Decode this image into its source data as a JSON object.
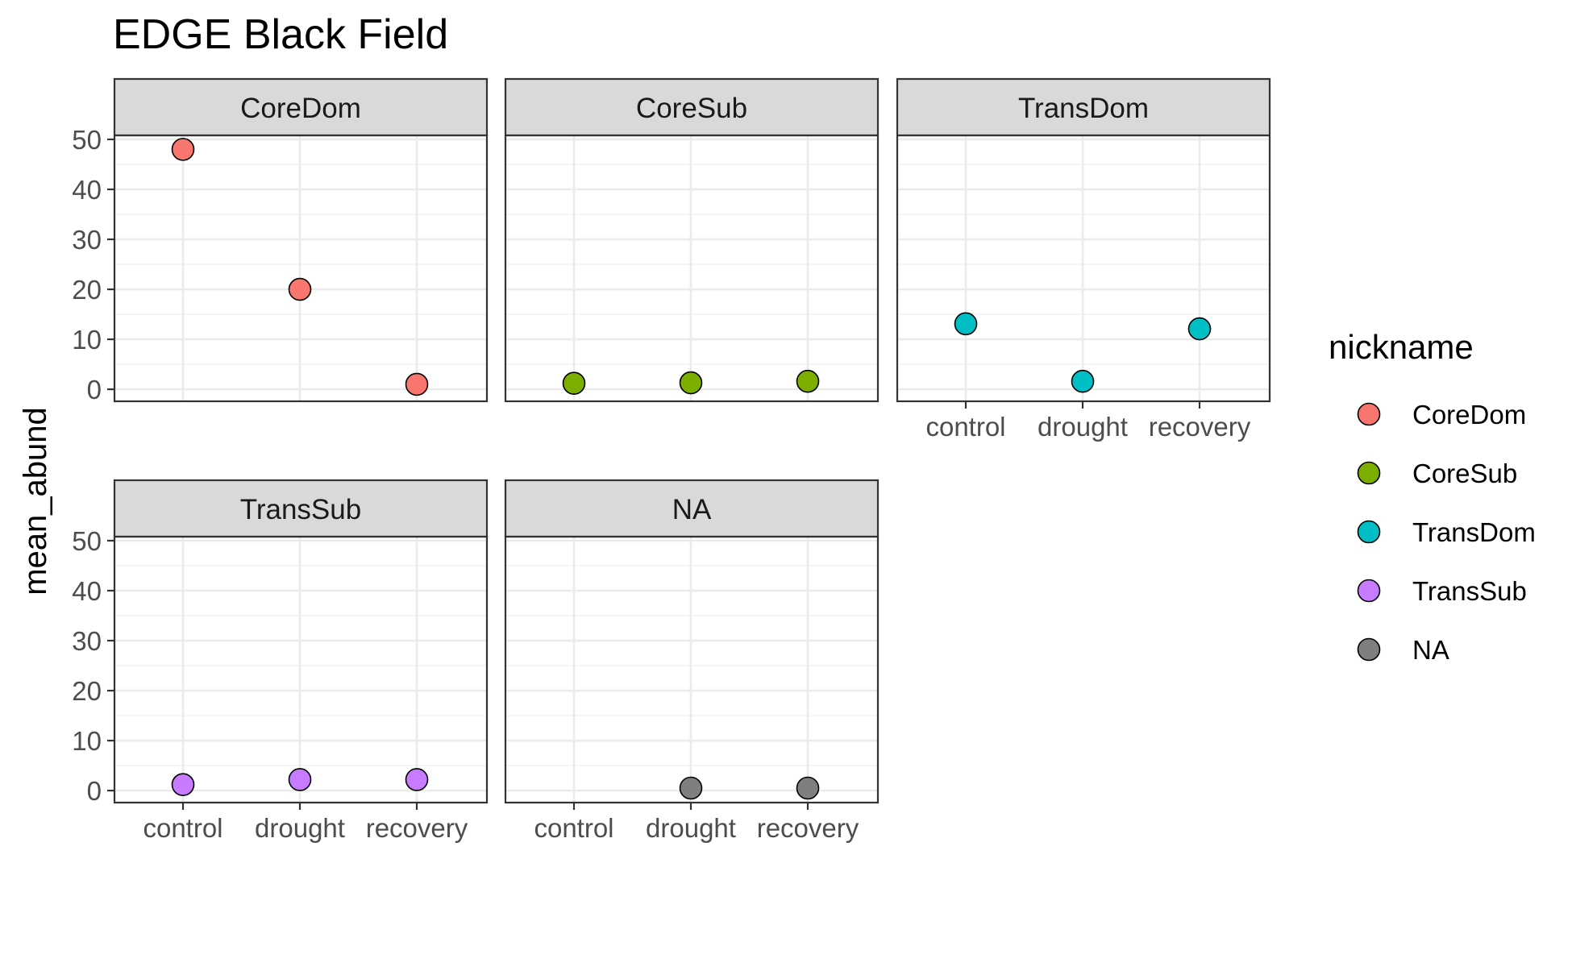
{
  "chart_data": {
    "type": "scatter",
    "title": "EDGE Black Field",
    "xlabel": "",
    "ylabel": "mean_abund",
    "categories": [
      "control",
      "drought",
      "recovery"
    ],
    "yticks": [
      0,
      10,
      20,
      30,
      40,
      50
    ],
    "ylim": [
      -2.4,
      50.8
    ],
    "grid": true,
    "legend": {
      "title": "nickname",
      "placement": "right",
      "entries": [
        {
          "label": "CoreDom",
          "color": "#F8766D"
        },
        {
          "label": "CoreSub",
          "color": "#7CAE00"
        },
        {
          "label": "TransDom",
          "color": "#00BFC4"
        },
        {
          "label": "TransSub",
          "color": "#C77CFF"
        },
        {
          "label": "NA",
          "color": "#7F7F7F"
        }
      ]
    },
    "panels": [
      {
        "strip": "CoreDom",
        "color": "#F8766D",
        "x": [
          "control",
          "drought",
          "recovery"
        ],
        "y": [
          48,
          20,
          1
        ]
      },
      {
        "strip": "CoreSub",
        "color": "#7CAE00",
        "x": [
          "control",
          "drought",
          "recovery"
        ],
        "y": [
          1.2,
          1.3,
          1.6
        ]
      },
      {
        "strip": "TransDom",
        "color": "#00BFC4",
        "x": [
          "control",
          "drought",
          "recovery"
        ],
        "y": [
          13.1,
          1.6,
          12.1
        ]
      },
      {
        "strip": "TransSub",
        "color": "#C77CFF",
        "x": [
          "control",
          "drought",
          "recovery"
        ],
        "y": [
          1.2,
          2.2,
          2.2
        ]
      },
      {
        "strip": "NA",
        "color": "#7F7F7F",
        "x": [
          "drought",
          "recovery"
        ],
        "y": [
          0.5,
          0.5
        ]
      }
    ]
  }
}
